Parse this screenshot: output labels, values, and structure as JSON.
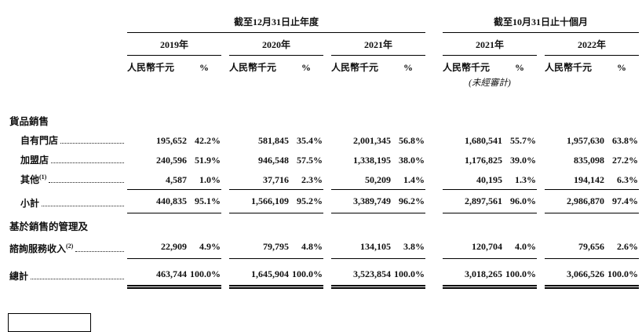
{
  "table": {
    "group_headers": [
      "截至12月31日止年度",
      "截至10月31日止十個月"
    ],
    "years": [
      "2019年",
      "2020年",
      "2021年",
      "2021年",
      "2022年"
    ],
    "unit": "人民幣千元",
    "pct": "%",
    "unaudited": "(未經審計)",
    "rows": [
      {
        "type": "section",
        "label": "貨品銷售"
      },
      {
        "type": "data",
        "label": "自有門店",
        "indent": true,
        "leader": true,
        "values": [
          "195,652",
          "42.2%",
          "581,845",
          "35.4%",
          "2,001,345",
          "56.8%",
          "1,680,541",
          "55.7%",
          "1,957,630",
          "63.8%"
        ]
      },
      {
        "type": "data",
        "label": "加盟店",
        "indent": true,
        "leader": true,
        "values": [
          "240,596",
          "51.9%",
          "946,548",
          "57.5%",
          "1,338,195",
          "38.0%",
          "1,176,825",
          "39.0%",
          "835,098",
          "27.2%"
        ]
      },
      {
        "type": "data",
        "label": "其他",
        "sup": "(1)",
        "indent": true,
        "leader": true,
        "values": [
          "4,587",
          "1.0%",
          "37,716",
          "2.3%",
          "50,209",
          "1.4%",
          "40,195",
          "1.3%",
          "194,142",
          "6.3%"
        ]
      },
      {
        "type": "subtotal",
        "label": "小計",
        "indent": true,
        "leader": true,
        "values": [
          "440,835",
          "95.1%",
          "1,566,109",
          "95.2%",
          "3,389,749",
          "96.2%",
          "2,897,561",
          "96.0%",
          "2,986,870",
          "97.4%"
        ]
      },
      {
        "type": "section2",
        "label": "基於銷售的管理及"
      },
      {
        "type": "data2",
        "label": "諮詢服務收入",
        "sup": "(2)",
        "leader": true,
        "values": [
          "22,909",
          "4.9%",
          "79,795",
          "4.8%",
          "134,105",
          "3.8%",
          "120,704",
          "4.0%",
          "79,656",
          "2.6%"
        ]
      },
      {
        "type": "total",
        "label": "總計",
        "leader": true,
        "values": [
          "463,744",
          "100.0%",
          "1,645,904",
          "100.0%",
          "3,523,854",
          "100.0%",
          "3,018,265",
          "100.0%",
          "3,066,526",
          "100.0%"
        ]
      }
    ]
  }
}
